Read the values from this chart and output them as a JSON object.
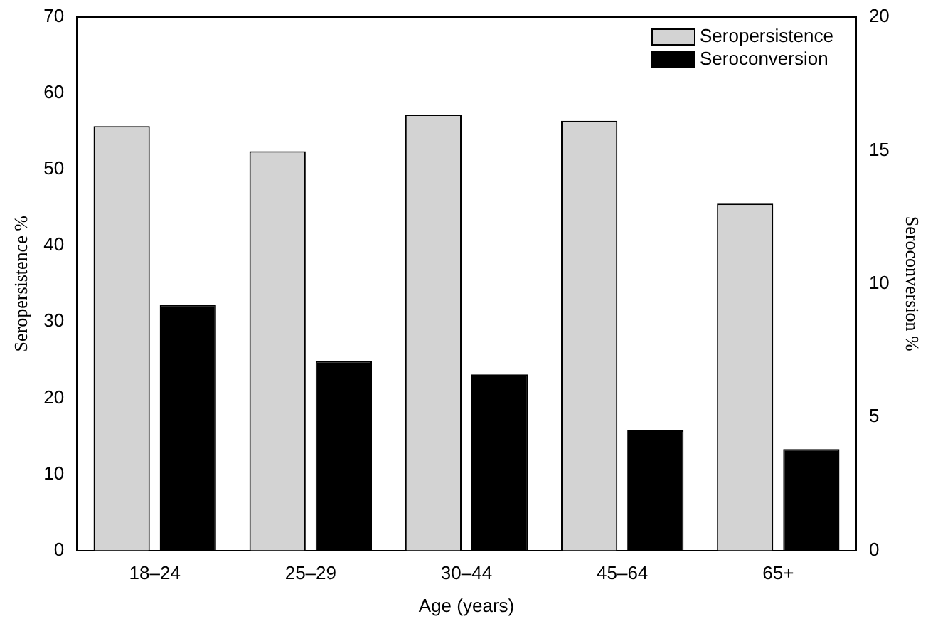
{
  "chart_data": {
    "type": "bar",
    "xlabel": "Age (years)",
    "ylabel": "Seropersistence %",
    "y2label": "Seroconversion %",
    "categories": [
      "18–24",
      "25–29",
      "30–44",
      "45–64",
      "65+"
    ],
    "series": [
      {
        "name": "Seropersistence",
        "color": "#d3d3d3",
        "values": [
          55.7,
          52.4,
          57.2,
          56.4,
          45.5
        ]
      },
      {
        "name": "Seroconversion",
        "color": "#000000",
        "values": [
          9.2,
          7.1,
          6.6,
          4.5,
          3.8
        ],
        "axis": "y2"
      }
    ],
    "ylim": [
      0,
      70
    ],
    "yticks": [
      0,
      10,
      20,
      30,
      40,
      50,
      60,
      70
    ],
    "y2lim": [
      0,
      20
    ],
    "y2ticks": [
      0,
      5,
      10,
      15,
      20
    ],
    "grid": false,
    "legend": "top right"
  }
}
